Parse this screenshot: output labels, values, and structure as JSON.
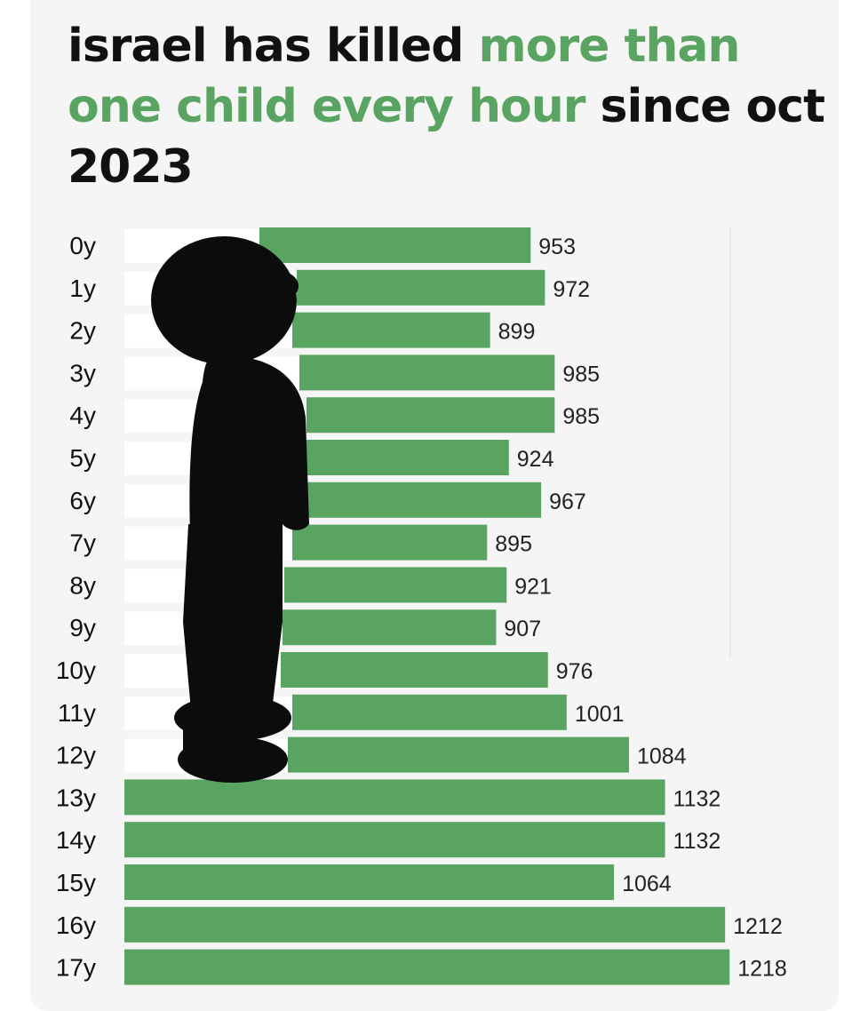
{
  "title": {
    "part1": "israel has killed ",
    "part2": "more than one child every hour",
    "part3": " since oct 2023"
  },
  "colors": {
    "bar": "#5aa462",
    "highlight": "#5aa462",
    "text": "#111111",
    "silhouette": "#0c0c0c"
  },
  "chart_data": {
    "type": "bar",
    "orientation": "horizontal",
    "categories": [
      "0y",
      "1y",
      "2y",
      "3y",
      "4y",
      "5y",
      "6y",
      "7y",
      "8y",
      "9y",
      "10y",
      "11y",
      "12y",
      "13y",
      "14y",
      "15y",
      "16y",
      "17y"
    ],
    "values": [
      953,
      972,
      899,
      985,
      985,
      924,
      967,
      895,
      921,
      907,
      976,
      1001,
      1084,
      1132,
      1132,
      1064,
      1212,
      1218
    ],
    "title": "israel has killed more than one child every hour since oct 2023",
    "grid": false,
    "legend": "none"
  }
}
